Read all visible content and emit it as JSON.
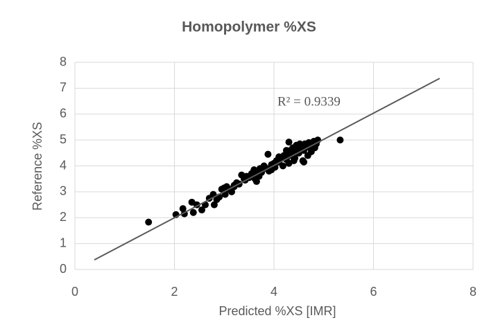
{
  "chart_data": {
    "type": "scatter",
    "title": "Homopolymer %XS",
    "x_label": "Predicted %XS [IMR]",
    "y_label": "Reference %XS",
    "x": [
      1.48,
      2.03,
      2.17,
      2.2,
      2.35,
      2.38,
      2.45,
      2.55,
      2.62,
      2.7,
      2.78,
      2.8,
      2.85,
      2.9,
      2.95,
      3.0,
      3.02,
      3.05,
      3.1,
      3.15,
      3.2,
      3.25,
      3.3,
      3.35,
      3.4,
      3.45,
      3.5,
      3.55,
      3.6,
      3.62,
      3.65,
      3.68,
      3.7,
      3.72,
      3.75,
      3.8,
      3.85,
      3.88,
      3.9,
      3.95,
      4.0,
      4.02,
      4.05,
      4.1,
      4.15,
      4.18,
      4.2,
      4.25,
      4.28,
      4.3,
      4.3,
      4.33,
      4.35,
      4.38,
      4.4,
      4.42,
      4.45,
      4.48,
      4.5,
      4.52,
      4.55,
      4.58,
      4.6,
      4.62,
      4.65,
      4.68,
      4.7,
      4.72,
      4.75,
      4.78,
      4.8,
      4.82,
      4.85,
      4.88,
      5.33,
      3.58,
      3.42,
      3.2,
      3.6,
      4.1,
      4.4,
      4.25,
      3.95,
      4.6
    ],
    "values": [
      1.83,
      2.12,
      2.35,
      2.15,
      2.6,
      2.2,
      2.5,
      2.3,
      2.5,
      2.75,
      2.9,
      2.5,
      2.7,
      2.8,
      3.1,
      3.15,
      2.9,
      3.2,
      3.1,
      3.0,
      3.2,
      3.35,
      3.3,
      3.65,
      3.5,
      3.6,
      3.55,
      3.7,
      3.85,
      3.5,
      3.4,
      3.8,
      3.6,
      3.9,
      3.75,
      4.0,
      3.9,
      4.45,
      3.8,
      4.05,
      4.1,
      3.95,
      4.2,
      4.15,
      4.3,
      4.0,
      4.4,
      4.25,
      4.5,
      4.1,
      4.92,
      4.6,
      4.4,
      4.7,
      4.55,
      4.3,
      4.8,
      4.65,
      4.5,
      4.85,
      4.7,
      4.2,
      4.6,
      4.85,
      4.75,
      4.4,
      4.9,
      4.7,
      4.55,
      4.8,
      4.95,
      4.7,
      4.85,
      5.0,
      5.0,
      3.75,
      3.45,
      3.25,
      3.65,
      4.35,
      4.2,
      4.6,
      3.85,
      4.15
    ],
    "color": "#000000",
    "trendline": {
      "x": [
        0.39,
        7.33
      ],
      "y": [
        0.37,
        7.38
      ],
      "color": "#595959"
    },
    "annotation": "R² = 0.9339",
    "xlim": [
      0,
      8
    ],
    "xticks": [
      0,
      2,
      4,
      6,
      8
    ],
    "ylim": [
      0,
      8
    ],
    "yticks": [
      0,
      1,
      2,
      3,
      4,
      5,
      6,
      7,
      8
    ],
    "grid": true
  }
}
